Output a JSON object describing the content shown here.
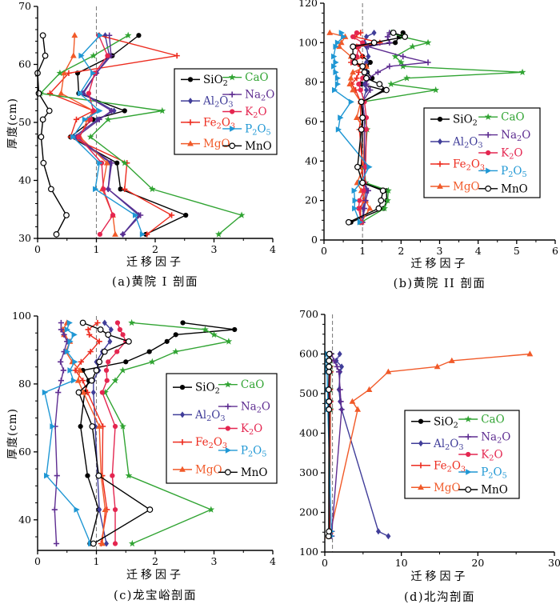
{
  "page": {
    "background": "#ffffff"
  },
  "chart_data": [
    {
      "id": "a",
      "type": "line",
      "caption": "(a)黄院 I 剖面",
      "xlabel": "迁移因子",
      "ylabel": "厚度(cm)",
      "xlim": [
        0,
        4
      ],
      "xticks": [
        0,
        1,
        2,
        3,
        4
      ],
      "x_minor_step": 0.5,
      "ylim": [
        30,
        70
      ],
      "yticks": [
        30,
        40,
        50,
        60,
        70
      ],
      "y_minor_step": 2,
      "refline_x": 1,
      "legend_split": 4,
      "depths": [
        30.7,
        34,
        38.5,
        43,
        47.5,
        50.5,
        52,
        55,
        58.5,
        61.5,
        65
      ],
      "series": [
        {
          "name": "SiO2",
          "label": "SiO2",
          "color": "#000000",
          "marker": "circle",
          "values": [
            1.84,
            2.52,
            1.41,
            1.35,
            0.56,
            0.94,
            1.48,
            0.7,
            0.68,
            1.27,
            1.72
          ]
        },
        {
          "name": "Al2O3",
          "label": "Al2O3",
          "color": "#403d99",
          "marker": "diamond",
          "values": [
            1.45,
            1.72,
            1.2,
            1.24,
            0.62,
            1.02,
            1.3,
            0.78,
            1.0,
            1.22,
            1.15
          ]
        },
        {
          "name": "Fe2O3",
          "label": "Fe2O3",
          "color": "#ed2c1f",
          "marker": "plus",
          "values": [
            1.86,
            2.28,
            1.48,
            1.52,
            0.56,
            0.66,
            0.95,
            0.21,
            0.53,
            2.37,
            1.05
          ]
        },
        {
          "name": "MgO",
          "label": "MgO",
          "color": "#f15a29",
          "marker": "triangle-up",
          "values": [
            1.32,
            1.28,
            1.1,
            1.18,
            0.72,
            0.85,
            0.95,
            0.4,
            0.45,
            0.61,
            0.63
          ]
        },
        {
          "name": "CaO",
          "label": "CaO",
          "color": "#31a433",
          "marker": "star",
          "values": [
            3.08,
            3.47,
            1.95,
            1.48,
            0.9,
            1.2,
            2.12,
            0.05,
            0.38,
            0.95,
            1.54
          ]
        },
        {
          "name": "Na2O",
          "label": "Na2O",
          "color": "#5e2d91",
          "marker": "plus",
          "values": [
            1.45,
            1.75,
            1.2,
            1.26,
            0.66,
            1.05,
            1.26,
            0.76,
            1.0,
            1.25,
            1.22
          ]
        },
        {
          "name": "K2O",
          "label": "K2O",
          "color": "#e42650",
          "marker": "circle",
          "values": [
            1.06,
            1.28,
            1.12,
            1.09,
            0.7,
            0.9,
            0.95,
            0.87,
            0.97,
            1.19,
            1.04
          ]
        },
        {
          "name": "P2O5",
          "label": "P2O5",
          "color": "#1f97d4",
          "marker": "triangle-right",
          "values": [
            1.78,
            1.66,
            0.98,
            1.05,
            0.6,
            0.8,
            1.05,
            0.72,
            0.94,
            0.74,
            1.06
          ]
        },
        {
          "name": "MnO",
          "label": "MnO",
          "color": "#000000",
          "marker": "circle-open",
          "values": [
            0.32,
            0.49,
            0.23,
            0.1,
            0.06,
            0.09,
            0.2,
            0.02,
            0.0,
            0.13,
            0.09
          ]
        }
      ]
    },
    {
      "id": "b",
      "type": "line",
      "caption": "(b)黄院 II 剖面",
      "xlabel": "迁移因子",
      "ylabel": "",
      "xlim": [
        0,
        6
      ],
      "xticks": [
        0,
        1,
        2,
        3,
        4,
        5,
        6
      ],
      "x_minor_step": 0.5,
      "ylim": [
        0,
        120
      ],
      "yticks": [
        0,
        20,
        40,
        60,
        80,
        100,
        120
      ],
      "y_minor_step": 5,
      "refline_x": 1,
      "legend_split": 4,
      "depths": [
        9,
        16,
        20,
        25,
        29,
        37,
        56,
        62,
        70,
        76,
        79,
        82,
        85,
        88,
        90,
        93,
        98,
        100,
        103,
        105
      ],
      "series": [
        {
          "name": "SiO2",
          "label": "SiO2",
          "color": "#000000",
          "marker": "circle",
          "values": [
            0.7,
            1.55,
            1.63,
            1.62,
            1.02,
            0.97,
            1.0,
            1.0,
            1.02,
            1.55,
            0.97,
            1.25,
            1.12,
            1.1,
            1.2,
            1.0,
            0.85,
            1.85,
            1.95,
            2.05
          ]
        },
        {
          "name": "Al2O3",
          "label": "Al2O3",
          "color": "#403d99",
          "marker": "diamond",
          "values": [
            1.0,
            1.02,
            1.05,
            1.1,
            1.05,
            1.05,
            1.05,
            1.05,
            1.0,
            1.1,
            1.05,
            1.1,
            1.1,
            1.05,
            1.1,
            1.15,
            1.1,
            1.05,
            1.1,
            1.3
          ]
        },
        {
          "name": "Fe2O3",
          "label": "Fe2O3",
          "color": "#ed2c1f",
          "marker": "plus",
          "values": [
            0.95,
            0.95,
            1.02,
            1.05,
            1.0,
            1.0,
            0.92,
            0.95,
            0.95,
            0.82,
            0.72,
            0.85,
            0.9,
            0.95,
            0.7,
            1.0,
            0.85,
            1.45,
            0.8,
            0.95
          ]
        },
        {
          "name": "MgO",
          "label": "MgO",
          "color": "#f15a29",
          "marker": "triangle-up",
          "values": [
            0.97,
            1.19,
            1.08,
            0.97,
            0.86,
            1.02,
            1.05,
            0.85,
            0.95,
            0.75,
            0.67,
            0.7,
            0.75,
            1.1,
            0.8,
            0.7,
            0.4,
            0.45,
            0.55,
            0.15
          ]
        },
        {
          "name": "CaO",
          "label": "CaO",
          "color": "#31a433",
          "marker": "star",
          "values": [
            0.97,
            1.57,
            1.65,
            1.67,
            1.08,
            1.05,
            1.12,
            1.05,
            1.0,
            2.9,
            1.74,
            2.15,
            5.15,
            2.05,
            2.0,
            1.85,
            2.3,
            2.7,
            2.03,
            1.75
          ]
        },
        {
          "name": "Na2O",
          "label": "Na2O",
          "color": "#5e2d91",
          "marker": "plus",
          "values": [
            1.0,
            1.05,
            1.08,
            1.15,
            1.05,
            1.05,
            1.05,
            1.05,
            1.0,
            1.2,
            1.1,
            1.15,
            1.4,
            1.7,
            2.7,
            2.05,
            1.15,
            1.7,
            1.65,
            1.7
          ]
        },
        {
          "name": "K2O",
          "label": "K2O",
          "color": "#e42650",
          "marker": "circle",
          "values": [
            0.97,
            0.9,
            0.92,
            1.03,
            1.05,
            1.08,
            1.1,
            1.1,
            1.05,
            0.95,
            0.9,
            1.0,
            1.05,
            1.0,
            0.75,
            0.85,
            0.9,
            1.0,
            0.75,
            0.85
          ]
        },
        {
          "name": "P2O5",
          "label": "P2O5",
          "color": "#1f97d4",
          "marker": "triangle-right",
          "values": [
            0.93,
            0.79,
            0.8,
            0.78,
            0.95,
            1.17,
            0.37,
            0.42,
            0.7,
            0.27,
            0.35,
            0.35,
            0.3,
            0.25,
            0.3,
            0.25,
            0.3,
            0.35,
            0.5,
            0.45
          ]
        },
        {
          "name": "MnO",
          "label": "MnO",
          "color": "#000000",
          "marker": "circle-open",
          "values": [
            0.64,
            1.42,
            1.48,
            1.53,
            1.0,
            0.87,
            0.97,
            1.0,
            0.97,
            1.62,
            1.44,
            1.1,
            1.05,
            1.0,
            0.8,
            0.75,
            0.75,
            1.3,
            2.1,
            1.8
          ]
        }
      ]
    },
    {
      "id": "c",
      "type": "line",
      "caption": "(c)龙宝峪剖面",
      "xlabel": "迁移因子",
      "ylabel": "厚度(cm)",
      "xlim": [
        0,
        4
      ],
      "xticks": [
        0,
        1,
        2,
        3,
        4
      ],
      "x_minor_step": 0.5,
      "ylim": [
        31,
        100
      ],
      "yticks": [
        40,
        60,
        80,
        100
      ],
      "y_minor_step": 5,
      "refline_x": 1,
      "legend_split": 4,
      "depths": [
        33,
        43,
        53,
        67.5,
        77.5,
        81,
        84,
        86.5,
        89.5,
        92.5,
        94.5,
        96,
        98
      ],
      "series": [
        {
          "name": "SiO2",
          "label": "SiO2",
          "color": "#000000",
          "marker": "circle",
          "values": [
            0.89,
            1.04,
            0.85,
            0.73,
            0.8,
            0.87,
            0.77,
            1.5,
            1.9,
            2.2,
            2.35,
            3.35,
            2.47
          ]
        },
        {
          "name": "Al2O3",
          "label": "Al2O3",
          "color": "#403d99",
          "marker": "diamond",
          "values": [
            1.17,
            1.05,
            1.02,
            0.98,
            0.95,
            0.95,
            1.04,
            1.0,
            1.1,
            1.23,
            1.2,
            1.25,
            1.14
          ]
        },
        {
          "name": "Fe2O3",
          "label": "Fe2O3",
          "color": "#ed2c1f",
          "marker": "plus",
          "values": [
            1.08,
            1.18,
            1.1,
            1.11,
            0.85,
            0.77,
            0.64,
            0.74,
            0.9,
            1.05,
            0.88,
            0.86,
            1.02
          ]
        },
        {
          "name": "MgO",
          "label": "MgO",
          "color": "#f15a29",
          "marker": "triangle-up",
          "values": [
            1.1,
            1.15,
            1.08,
            1.05,
            0.78,
            0.69,
            0.72,
            0.59,
            0.48,
            0.55,
            0.45,
            0.43,
            0.5
          ]
        },
        {
          "name": "CaO",
          "label": "CaO",
          "color": "#31a433",
          "marker": "star",
          "values": [
            1.61,
            2.95,
            1.55,
            1.45,
            1.15,
            1.32,
            1.45,
            1.95,
            2.35,
            3.25,
            3.0,
            2.85,
            1.6
          ]
        },
        {
          "name": "Na2O",
          "label": "Na2O",
          "color": "#5e2d91",
          "marker": "plus",
          "values": [
            0.32,
            0.29,
            0.33,
            0.3,
            0.35,
            0.4,
            0.44,
            0.39,
            0.45,
            0.5,
            0.45,
            0.4,
            0.4
          ]
        },
        {
          "name": "K2O",
          "label": "K2O",
          "color": "#e42650",
          "marker": "circle",
          "values": [
            1.32,
            1.32,
            1.27,
            1.32,
            1.1,
            1.18,
            1.17,
            1.2,
            1.35,
            1.5,
            1.45,
            1.4,
            1.36
          ]
        },
        {
          "name": "P2O5",
          "label": "P2O5",
          "color": "#1f97d4",
          "marker": "triangle-right",
          "values": [
            0.9,
            0.66,
            0.15,
            0.25,
            0.12,
            0.61,
            0.55,
            0.63,
            0.5,
            0.55,
            0.62,
            0.5,
            0.54
          ]
        },
        {
          "name": "MnO",
          "label": "MnO",
          "color": "#000000",
          "marker": "circle-open",
          "values": [
            0.95,
            1.91,
            1.04,
            0.93,
            0.7,
            0.92,
            1.0,
            1.05,
            1.14,
            1.55,
            1.2,
            1.07,
            0.77
          ]
        }
      ]
    },
    {
      "id": "d",
      "type": "line",
      "caption": "(d)北沟剖面",
      "xlabel": "迁移因子",
      "ylabel": "",
      "xlim": [
        0,
        30
      ],
      "xticks": [
        0,
        10,
        20,
        30
      ],
      "x_minor_step": 5,
      "ylim": [
        100,
        700
      ],
      "yticks": [
        100,
        200,
        300,
        400,
        500,
        600,
        700
      ],
      "y_minor_step": 25,
      "refline_x": 1,
      "legend_split": 4,
      "depths": [
        140,
        152,
        460,
        480,
        510,
        555,
        568,
        583,
        600
      ],
      "series": [
        {
          "name": "SiO2",
          "label": "SiO2",
          "color": "#000000",
          "marker": "circle",
          "values": [
            0.5,
            0.52,
            0.55,
            0.55,
            0.52,
            0.55,
            0.52,
            0.52,
            0.58
          ]
        },
        {
          "name": "Al2O3",
          "label": "Al2O3",
          "color": "#403d99",
          "marker": "diamond",
          "values": [
            8.3,
            7.0,
            2.2,
            2.0,
            1.85,
            2.0,
            2.2,
            1.5,
            1.95
          ]
        },
        {
          "name": "Fe2O3",
          "label": "Fe2O3",
          "color": "#ed2c1f",
          "marker": "plus",
          "values": [
            0.62,
            0.65,
            0.75,
            0.75,
            0.7,
            0.75,
            0.72,
            0.7,
            0.75
          ]
        },
        {
          "name": "MgO",
          "label": "MgO",
          "color": "#f15a29",
          "marker": "triangle-up",
          "values": [
            0.5,
            0.75,
            4.3,
            3.6,
            5.8,
            8.3,
            14.7,
            16.6,
            26.8
          ]
        },
        {
          "name": "CaO",
          "label": "CaO",
          "color": "#31a433",
          "marker": "star",
          "values": [
            0.55,
            0.6,
            0.7,
            0.72,
            0.7,
            0.75,
            0.72,
            0.7,
            0.8
          ]
        },
        {
          "name": "Na2O",
          "label": "Na2O",
          "color": "#5e2d91",
          "marker": "plus",
          "values": [
            0.9,
            0.92,
            2.2,
            2.1,
            2.0,
            1.85,
            1.6,
            1.2,
            0.88
          ]
        },
        {
          "name": "K2O",
          "label": "K2O",
          "color": "#e42650",
          "marker": "circle",
          "values": [
            0.58,
            0.6,
            0.65,
            0.7,
            0.65,
            0.7,
            0.65,
            0.65,
            0.7
          ]
        },
        {
          "name": "P2O5",
          "label": "P2O5",
          "color": "#1f97d4",
          "marker": "triangle-right",
          "values": [
            0.8,
            0.85,
            0.4,
            0.4,
            0.35,
            0.3,
            0.3,
            0.3,
            0.35
          ]
        },
        {
          "name": "MnO",
          "label": "MnO",
          "color": "#000000",
          "marker": "circle-open",
          "values": [
            0.5,
            0.55,
            0.55,
            0.55,
            0.52,
            0.55,
            0.55,
            0.55,
            0.6
          ]
        }
      ]
    }
  ],
  "style": {
    "refline_color": "#808080",
    "axis_color": "#000000"
  }
}
